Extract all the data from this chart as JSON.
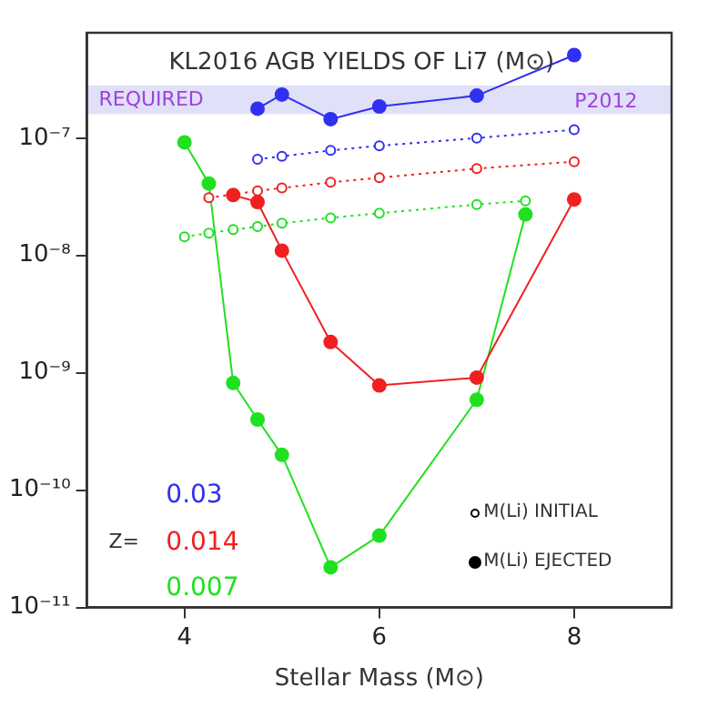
{
  "chart_data": {
    "type": "line",
    "title": "KL2016 AGB YIELDS OF Li7 (M⊙)",
    "xlabel": "Stellar Mass (M⊙)",
    "log": "y",
    "xlim": [
      3,
      9
    ],
    "xticks": [
      4,
      6,
      8
    ],
    "ylim": [
      1e-11,
      7.9e-07
    ],
    "yticks": [
      {
        "value": 1e-11,
        "label": "10⁻¹¹"
      },
      {
        "value": 1e-10,
        "label": "10⁻¹⁰"
      },
      {
        "value": 1e-09,
        "label": "10⁻⁹"
      },
      {
        "value": 1e-08,
        "label": "10⁻⁸"
      },
      {
        "value": 1e-07,
        "label": "10⁻⁷"
      }
    ],
    "grid": false,
    "marker": "circle",
    "series": [
      {
        "color": "#3030f0",
        "line_style": "solid",
        "x": [
          4.75,
          5,
          5.5,
          6,
          7,
          8
        ],
        "values": [
          1.78e-07,
          2.35e-07,
          1.45e-07,
          1.86e-07,
          2.3e-07,
          5.1e-07
        ]
      },
      {
        "color": "#3030f0",
        "line_style": "dotted",
        "x": [
          4.75,
          5,
          5.5,
          6,
          7,
          8
        ],
        "values": [
          6.6e-08,
          7e-08,
          7.85e-08,
          8.6e-08,
          1e-07,
          1.18e-07
        ]
      },
      {
        "color": "#f02020",
        "line_style": "solid",
        "x": [
          4.5,
          4.75,
          5,
          5.5,
          6,
          7,
          8
        ],
        "values": [
          3.27e-08,
          2.85e-08,
          1.1e-08,
          1.83e-09,
          7.8e-10,
          9.1e-10,
          3e-08
        ]
      },
      {
        "color": "#f02020",
        "line_style": "dotted",
        "x": [
          4.25,
          4.75,
          5,
          5.5,
          6,
          7,
          8
        ],
        "values": [
          3.1e-08,
          3.55e-08,
          3.76e-08,
          4.2e-08,
          4.6e-08,
          5.5e-08,
          6.3e-08
        ]
      },
      {
        "color": "#20e020",
        "line_style": "solid",
        "x": [
          4,
          4.25,
          4.5,
          4.75,
          5,
          5.5,
          6,
          7,
          7.5
        ],
        "values": [
          9.2e-08,
          4.1e-08,
          8.2e-10,
          4e-10,
          2e-10,
          2.2e-11,
          4.1e-11,
          5.9e-10,
          2.24e-08
        ]
      },
      {
        "color": "#20e020",
        "line_style": "dotted",
        "x": [
          4,
          4.25,
          4.5,
          4.75,
          5,
          5.5,
          6,
          7,
          7.5
        ],
        "values": [
          1.44e-08,
          1.55e-08,
          1.66e-08,
          1.76e-08,
          1.88e-08,
          2.09e-08,
          2.29e-08,
          2.72e-08,
          2.92e-08
        ]
      }
    ],
    "bands": [
      {
        "axis": "y",
        "from": 1.6e-07,
        "to": 2.8e-07,
        "color": "#e0e0f8",
        "label": "REQUIRED"
      }
    ],
    "annotations": [
      "P2012",
      "0.03",
      "Z=",
      "0.014",
      "0.007",
      "M(Li) INITIAL",
      "M(Li) EJECTED"
    ]
  }
}
